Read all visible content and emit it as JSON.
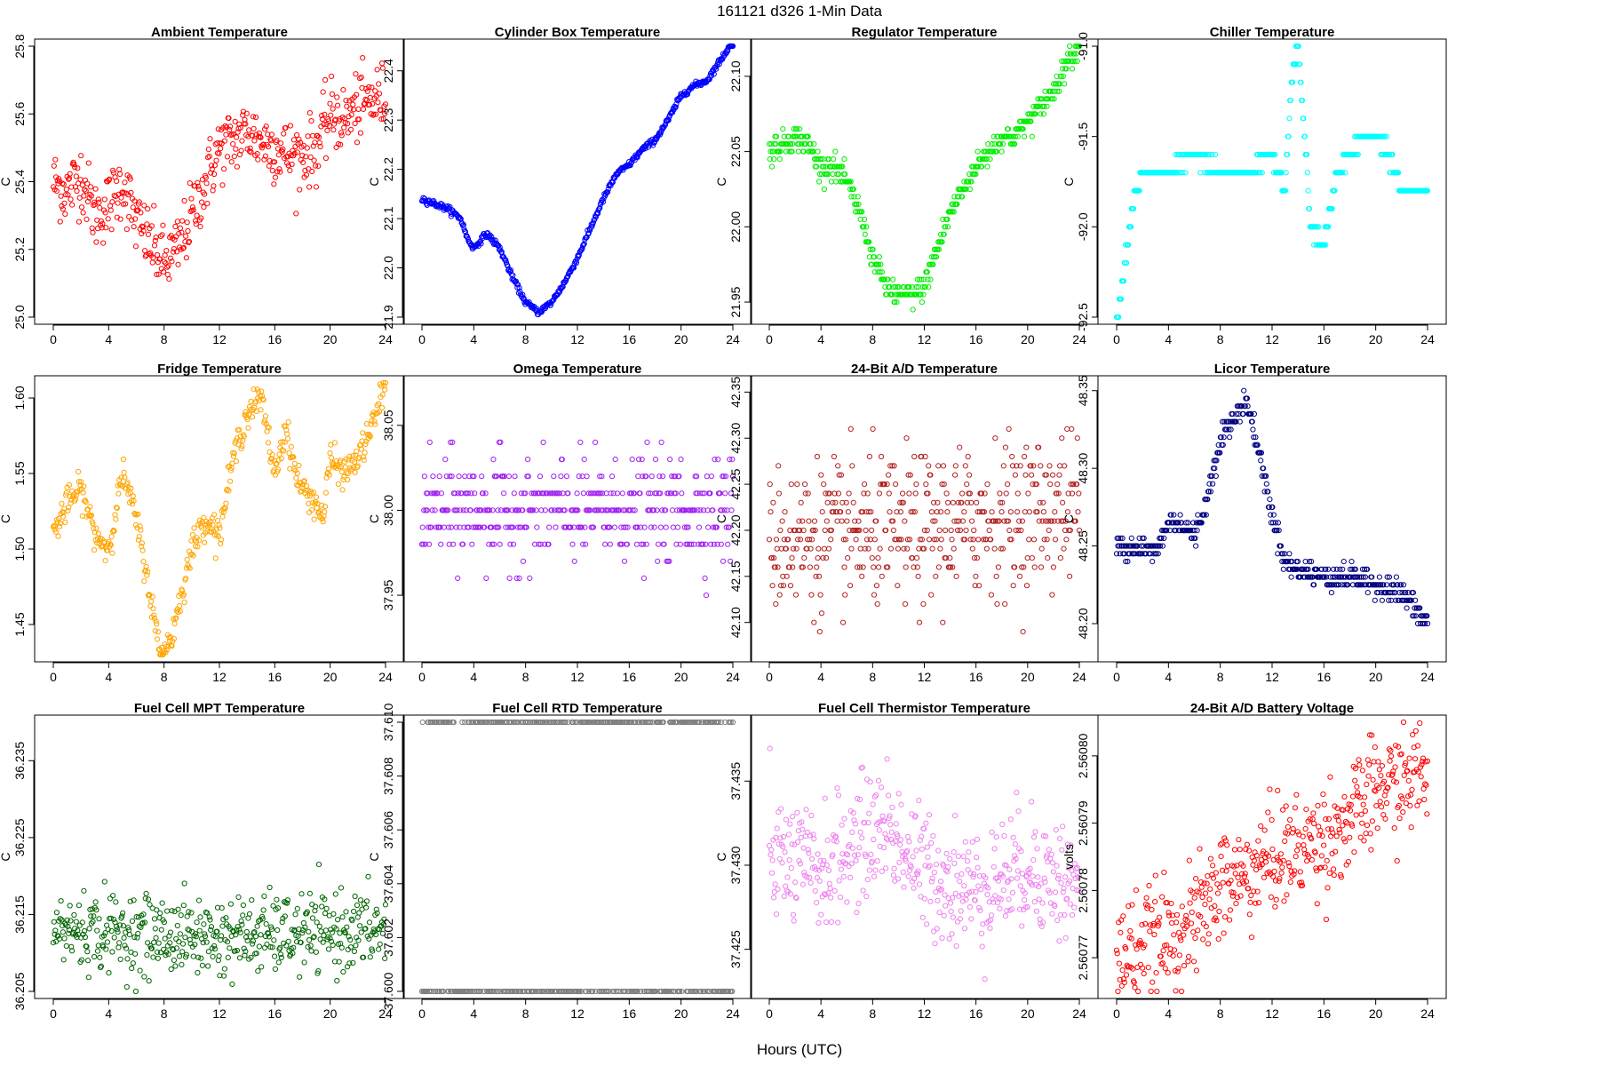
{
  "figure": {
    "suptitle": "161121    d326    1-Min Data",
    "xlabel": "Hours (UTC)"
  },
  "chart_data": [
    {
      "type": "scatter",
      "title": "Ambient Temperature",
      "ylabel": "C",
      "color": "#ff0000",
      "xlim": [
        0,
        24
      ],
      "ylim": [
        25.0,
        25.8
      ],
      "xticks": [
        0,
        4,
        8,
        12,
        16,
        20,
        24
      ],
      "yticks": [
        25.0,
        25.2,
        25.4,
        25.6,
        25.8
      ],
      "ytick_decimals": 1,
      "x": [
        0,
        1,
        2,
        3,
        4,
        5,
        6,
        7,
        8,
        9,
        10,
        11,
        12,
        13,
        14,
        15,
        16,
        17,
        18,
        19,
        20,
        21,
        22,
        23,
        24
      ],
      "y": [
        25.4,
        25.37,
        25.42,
        25.3,
        25.33,
        25.4,
        25.28,
        25.22,
        25.16,
        25.2,
        25.3,
        25.4,
        25.5,
        25.52,
        25.55,
        25.52,
        25.5,
        25.48,
        25.48,
        25.5,
        25.6,
        25.58,
        25.62,
        25.64,
        25.65
      ],
      "noise": 0.05
    },
    {
      "type": "scatter",
      "title": "Cylinder Box Temperature",
      "ylabel": "C",
      "color": "#0000ff",
      "xlim": [
        0,
        24
      ],
      "ylim": [
        21.9,
        22.45
      ],
      "xticks": [
        0,
        4,
        8,
        12,
        16,
        20,
        24
      ],
      "yticks": [
        21.9,
        22.0,
        22.1,
        22.2,
        22.3,
        22.4
      ],
      "ytick_decimals": 1,
      "x": [
        0,
        1,
        2,
        3,
        3.5,
        4,
        5,
        6,
        7,
        8,
        9,
        10,
        11,
        12,
        13,
        14,
        15,
        16,
        17,
        18,
        19,
        20,
        21,
        22,
        23,
        24
      ],
      "y": [
        22.14,
        22.13,
        22.12,
        22.1,
        22.06,
        22.04,
        22.07,
        22.04,
        21.98,
        21.93,
        21.91,
        21.93,
        21.97,
        22.02,
        22.08,
        22.14,
        22.19,
        22.21,
        22.24,
        22.26,
        22.3,
        22.35,
        22.37,
        22.38,
        22.42,
        22.46
      ],
      "noise": 0.003
    },
    {
      "type": "scatter",
      "title": "Regulator Temperature",
      "ylabel": "C",
      "color": "#00ee00",
      "xlim": [
        0,
        24
      ],
      "ylim": [
        21.94,
        22.12
      ],
      "xticks": [
        0,
        4,
        8,
        12,
        16,
        20,
        24
      ],
      "yticks": [
        21.95,
        22.0,
        22.05,
        22.1
      ],
      "ytick_decimals": 2,
      "x": [
        0,
        1,
        2,
        3,
        4,
        5,
        6,
        7,
        8,
        9,
        10,
        11,
        12,
        13,
        14,
        15,
        16,
        17,
        18,
        19,
        20,
        21,
        22,
        23,
        24
      ],
      "y": [
        22.05,
        22.055,
        22.06,
        22.055,
        22.04,
        22.04,
        22.03,
        22.01,
        21.98,
        21.96,
        21.955,
        21.955,
        21.96,
        21.985,
        22.01,
        22.025,
        22.04,
        22.05,
        22.06,
        22.06,
        22.07,
        22.08,
        22.09,
        22.11,
        22.12
      ],
      "noise": 0.004,
      "quantize": 0.005
    },
    {
      "type": "scatter",
      "title": "Chiller Temperature",
      "ylabel": "C",
      "color": "#00ffff",
      "xlim": [
        0,
        24
      ],
      "ylim": [
        -92.5,
        -91.0
      ],
      "xticks": [
        0,
        4,
        8,
        12,
        16,
        20,
        24
      ],
      "yticks": [
        -92.5,
        -92.0,
        -91.5,
        -91.0
      ],
      "ytick_decimals": 1,
      "x": [
        0,
        0.5,
        1,
        1.5,
        2,
        2.5,
        4,
        6,
        8,
        10,
        12,
        13,
        13.5,
        14,
        14.5,
        15,
        16,
        16.5,
        17,
        18,
        19,
        20,
        21,
        22,
        24
      ],
      "y": [
        -92.5,
        -92.3,
        -92.0,
        -91.8,
        -91.7,
        -91.7,
        -91.7,
        -91.6,
        -91.7,
        -91.7,
        -91.6,
        -91.8,
        -91.2,
        -91.0,
        -91.5,
        -92.0,
        -92.1,
        -91.9,
        -91.7,
        -91.6,
        -91.5,
        -91.5,
        -91.6,
        -91.8,
        -91.8
      ],
      "noise": 0.02,
      "quantize": 0.1
    },
    {
      "type": "scatter",
      "title": "Fridge Temperature",
      "ylabel": "C",
      "color": "#ffa500",
      "xlim": [
        0,
        24
      ],
      "ylim": [
        1.43,
        1.61
      ],
      "xticks": [
        0,
        4,
        8,
        12,
        16,
        20,
        24
      ],
      "yticks": [
        1.45,
        1.5,
        1.55,
        1.6
      ],
      "ytick_decimals": 2,
      "x": [
        0,
        1,
        2,
        3,
        4,
        5,
        6,
        7,
        7.7,
        8.5,
        9,
        10,
        11,
        12,
        13,
        14,
        15,
        16,
        16.8,
        17.5,
        18,
        19,
        19.5,
        20,
        21,
        22,
        23,
        24
      ],
      "y": [
        1.51,
        1.53,
        1.54,
        1.51,
        1.5,
        1.55,
        1.52,
        1.47,
        1.43,
        1.44,
        1.46,
        1.5,
        1.52,
        1.51,
        1.56,
        1.59,
        1.6,
        1.55,
        1.58,
        1.55,
        1.54,
        1.53,
        1.52,
        1.56,
        1.55,
        1.56,
        1.58,
        1.61
      ],
      "noise": 0.005
    },
    {
      "type": "scatter",
      "title": "Omega Temperature",
      "ylabel": "C",
      "color": "#a020f0",
      "xlim": [
        0,
        24
      ],
      "ylim": [
        37.915,
        38.075
      ],
      "xticks": [
        0,
        4,
        8,
        12,
        16,
        20,
        24
      ],
      "yticks": [
        37.95,
        38.0,
        38.05
      ],
      "ytick_decimals": 2,
      "x": [
        0,
        24
      ],
      "y": [
        38.0,
        38.0
      ],
      "noise": 0.015,
      "quantize": 0.01
    },
    {
      "type": "scatter",
      "title": "24-Bit A/D Temperature",
      "ylabel": "C",
      "color": "#b22222",
      "xlim": [
        0,
        24
      ],
      "ylim": [
        42.065,
        42.36
      ],
      "xticks": [
        0,
        4,
        8,
        12,
        16,
        20,
        24
      ],
      "yticks": [
        42.1,
        42.15,
        42.2,
        42.25,
        42.3,
        42.35
      ],
      "ytick_decimals": 2,
      "x": [
        0,
        12,
        24
      ],
      "y": [
        42.19,
        42.2,
        42.23
      ],
      "noise": 0.04,
      "quantize": 0.01
    },
    {
      "type": "scatter",
      "title": "Licor Temperature",
      "ylabel": "C",
      "color": "#000080",
      "xlim": [
        0,
        24
      ],
      "ylim": [
        48.18,
        48.355
      ],
      "xticks": [
        0,
        4,
        8,
        12,
        16,
        20,
        24
      ],
      "yticks": [
        48.2,
        48.25,
        48.3,
        48.35
      ],
      "ytick_decimals": 2,
      "x": [
        0,
        2,
        3,
        4,
        5,
        6,
        7,
        8,
        9,
        10,
        11,
        12,
        13,
        14,
        16,
        18,
        20,
        22,
        24
      ],
      "y": [
        48.25,
        48.25,
        48.245,
        48.265,
        48.265,
        48.255,
        48.28,
        48.32,
        48.33,
        48.345,
        48.31,
        48.27,
        48.24,
        48.235,
        48.23,
        48.23,
        48.225,
        48.22,
        48.2
      ],
      "noise": 0.004,
      "quantize": 0.005
    },
    {
      "type": "scatter",
      "title": "Fuel Cell MPT Temperature",
      "ylabel": "C",
      "color": "#006400",
      "xlim": [
        0,
        24
      ],
      "ylim": [
        36.205,
        36.24
      ],
      "xticks": [
        0,
        4,
        8,
        12,
        16,
        20,
        24
      ],
      "yticks": [
        36.205,
        36.215,
        36.225,
        36.235
      ],
      "ytick_decimals": 3,
      "x": [
        0,
        12,
        24
      ],
      "y": [
        36.213,
        36.212,
        36.213
      ],
      "noise": 0.0025
    },
    {
      "type": "scatter",
      "title": "Fuel Cell RTD Temperature",
      "ylabel": "C",
      "color": "#808080",
      "xlim": [
        0,
        24
      ],
      "ylim": [
        37.6,
        37.61
      ],
      "xticks": [
        0,
        4,
        8,
        12,
        16,
        20,
        24
      ],
      "yticks": [
        37.6,
        37.602,
        37.604,
        37.606,
        37.608,
        37.61
      ],
      "ytick_decimals": 3,
      "x": [
        0,
        24
      ],
      "y": [
        37.6,
        37.6
      ],
      "noise": 0,
      "twolevel": [
        37.6,
        37.61
      ]
    },
    {
      "type": "scatter",
      "title": "Fuel Cell Thermistor Temperature",
      "ylabel": "C",
      "color": "#ee82ee",
      "xlim": [
        0,
        24
      ],
      "ylim": [
        37.4225,
        37.4385
      ],
      "xticks": [
        0,
        4,
        8,
        12,
        16,
        20,
        24
      ],
      "yticks": [
        37.425,
        37.43,
        37.435
      ],
      "ytick_decimals": 3,
      "x": [
        0,
        4,
        8,
        9,
        12,
        16,
        20,
        24
      ],
      "y": [
        37.4305,
        37.4295,
        37.432,
        37.4325,
        37.4295,
        37.4285,
        37.43,
        37.4285
      ],
      "noise": 0.0018
    },
    {
      "type": "scatter",
      "title": "24-Bit A/D Battery Voltage",
      "ylabel": "volts",
      "color": "#ff0000",
      "xlim": [
        0,
        24
      ],
      "ylim": [
        2.560765,
        2.560805
      ],
      "xticks": [
        0,
        4,
        8,
        12,
        16,
        20,
        24
      ],
      "yticks": [
        2.56077,
        2.56078,
        2.56079,
        2.5608
      ],
      "ytick_decimals": 5,
      "x": [
        0,
        2,
        4,
        6,
        8,
        10,
        12,
        14,
        16,
        18,
        20,
        22,
        24
      ],
      "y": [
        2.56077,
        2.560772,
        2.560773,
        2.560775,
        2.560781,
        2.560782,
        2.560785,
        2.560786,
        2.560788,
        2.56079,
        2.560795,
        2.560796,
        2.560798
      ],
      "noise": 4e-06
    }
  ]
}
